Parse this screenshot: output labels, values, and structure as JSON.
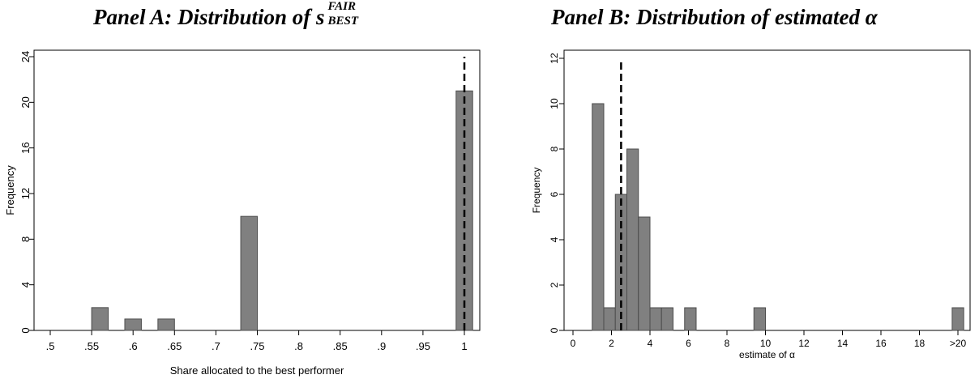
{
  "panels": {
    "a": {
      "title_main": "Panel A: Distribution of s",
      "title_sup": "FAIR",
      "title_sub": "BEST"
    },
    "b": {
      "title_main": "Panel B: Distribution of estimated ",
      "title_symbol": "α"
    }
  },
  "chart_data": [
    {
      "type": "bar",
      "title": "Panel A: Distribution of s_BEST^FAIR",
      "xlabel": "Share allocated to the best performer",
      "ylabel": "Frequency",
      "xlim": [
        0.5,
        1.0
      ],
      "ylim": [
        0,
        24
      ],
      "x_ticks": [
        0.5,
        0.55,
        0.6,
        0.65,
        0.7,
        0.75,
        0.8,
        0.85,
        0.9,
        0.95,
        1.0
      ],
      "x_tick_labels": [
        ".5",
        ".55",
        ".6",
        ".65",
        ".7",
        ".75",
        ".8",
        ".85",
        ".9",
        ".95",
        "1"
      ],
      "y_ticks": [
        0,
        4,
        8,
        12,
        16,
        20,
        24
      ],
      "y_tick_labels": [
        "0",
        "4",
        "8",
        "12",
        "16",
        "20",
        "24"
      ],
      "bin_width": 0.02,
      "bins": [
        {
          "x": 0.56,
          "value": 2
        },
        {
          "x": 0.6,
          "value": 1
        },
        {
          "x": 0.64,
          "value": 1
        },
        {
          "x": 0.74,
          "value": 10
        },
        {
          "x": 1.0,
          "value": 21
        }
      ],
      "reference_line": {
        "x": 1.0,
        "style": "dashed"
      },
      "grid": false
    },
    {
      "type": "bar",
      "title": "Panel B: Distribution of estimated α",
      "xlabel": "estimate of α",
      "ylabel": "Frequency",
      "xlim": [
        0,
        20
      ],
      "ylim": [
        0,
        12
      ],
      "x_ticks": [
        0,
        2,
        4,
        6,
        8,
        10,
        12,
        14,
        16,
        18,
        20
      ],
      "x_tick_labels": [
        "0",
        "2",
        "4",
        "6",
        "8",
        "10",
        "12",
        "14",
        "16",
        "18",
        ">20"
      ],
      "y_ticks": [
        0,
        2,
        4,
        6,
        8,
        10,
        12
      ],
      "y_tick_labels": [
        "0",
        "2",
        "4",
        "6",
        "8",
        "10",
        "12"
      ],
      "bin_width": 0.6,
      "bins": [
        {
          "x": 1.3,
          "value": 10
        },
        {
          "x": 1.9,
          "value": 1
        },
        {
          "x": 2.5,
          "value": 6
        },
        {
          "x": 3.1,
          "value": 8
        },
        {
          "x": 3.7,
          "value": 5
        },
        {
          "x": 4.3,
          "value": 1
        },
        {
          "x": 4.9,
          "value": 1
        },
        {
          "x": 6.1,
          "value": 1
        },
        {
          "x": 9.7,
          "value": 1
        },
        {
          "x": 20.0,
          "value": 1
        }
      ],
      "reference_line": {
        "x": 2.5,
        "style": "dashed"
      },
      "grid": false
    }
  ],
  "colors": {
    "bar_fill": "#808080",
    "bar_stroke": "#4d4d4d",
    "axis": "#000000",
    "reference_line": "#000000"
  }
}
